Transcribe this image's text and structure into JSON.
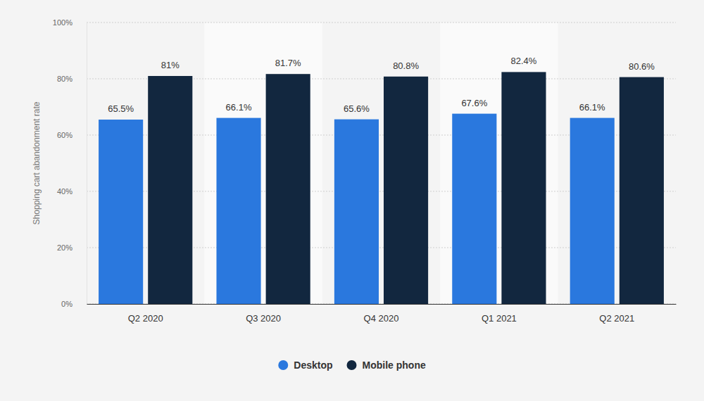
{
  "chart_data": {
    "type": "bar",
    "y_label": "Shopping cart abandonment rate",
    "categories": [
      "Q2 2020",
      "Q3 2020",
      "Q4 2020",
      "Q1 2021",
      "Q2 2021"
    ],
    "series": [
      {
        "name": "Desktop",
        "color": "#2a78de",
        "values": [
          65.5,
          66.1,
          65.6,
          67.6,
          66.1
        ],
        "value_labels": [
          "65.5%",
          "66.1%",
          "65.6%",
          "67.6%",
          "66.1%"
        ]
      },
      {
        "name": "Mobile phone",
        "color": "#12273f",
        "values": [
          81,
          81.7,
          80.8,
          82.4,
          80.6
        ],
        "value_labels": [
          "81%",
          "81.7%",
          "80.8%",
          "82.4%",
          "80.6%"
        ]
      }
    ],
    "ylim": [
      0,
      100
    ],
    "yticks": [
      {
        "value": 0,
        "label": "0%"
      },
      {
        "value": 20,
        "label": "20%"
      },
      {
        "value": 40,
        "label": "40%"
      },
      {
        "value": 60,
        "label": "60%"
      },
      {
        "value": 80,
        "label": "80%"
      },
      {
        "value": 100,
        "label": "100%"
      }
    ],
    "grid": true,
    "data_labels": true,
    "legend": "bottom"
  }
}
